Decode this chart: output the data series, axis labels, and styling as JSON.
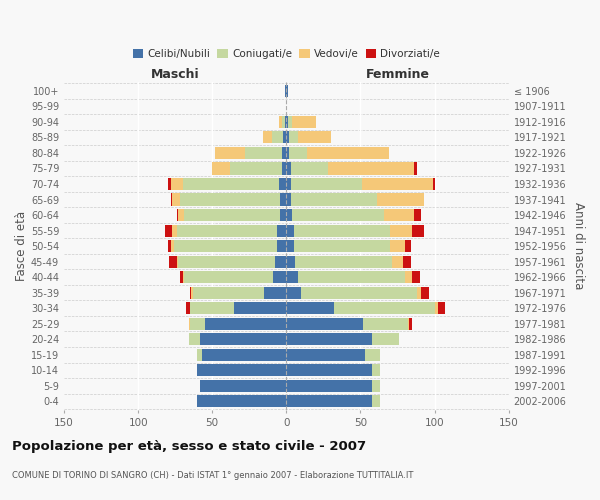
{
  "age_groups": [
    "100+",
    "95-99",
    "90-94",
    "85-89",
    "80-84",
    "75-79",
    "70-74",
    "65-69",
    "60-64",
    "55-59",
    "50-54",
    "45-49",
    "40-44",
    "35-39",
    "30-34",
    "25-29",
    "20-24",
    "15-19",
    "10-14",
    "5-9",
    "0-4"
  ],
  "birth_years": [
    "≤ 1906",
    "1907-1911",
    "1912-1916",
    "1917-1921",
    "1922-1926",
    "1927-1931",
    "1932-1936",
    "1937-1941",
    "1942-1946",
    "1947-1951",
    "1952-1956",
    "1957-1961",
    "1962-1966",
    "1967-1971",
    "1972-1976",
    "1977-1981",
    "1982-1986",
    "1987-1991",
    "1992-1996",
    "1997-2001",
    "2002-2006"
  ],
  "males_celibi": [
    1,
    0,
    1,
    2,
    3,
    3,
    5,
    4,
    4,
    6,
    6,
    8,
    9,
    15,
    35,
    55,
    58,
    57,
    60,
    58,
    60
  ],
  "males_coniugati": [
    0,
    0,
    2,
    8,
    25,
    35,
    65,
    68,
    65,
    68,
    70,
    65,
    60,
    48,
    30,
    10,
    8,
    3,
    0,
    0,
    0
  ],
  "males_vedovi": [
    0,
    0,
    2,
    6,
    20,
    12,
    8,
    5,
    4,
    3,
    2,
    1,
    1,
    1,
    0,
    1,
    0,
    0,
    0,
    0,
    0
  ],
  "males_divorziati": [
    0,
    0,
    0,
    0,
    0,
    0,
    2,
    1,
    1,
    5,
    2,
    5,
    2,
    1,
    3,
    0,
    0,
    0,
    0,
    0,
    0
  ],
  "females_nubili": [
    1,
    0,
    1,
    2,
    2,
    3,
    3,
    3,
    4,
    5,
    5,
    6,
    8,
    10,
    32,
    52,
    58,
    53,
    58,
    58,
    58
  ],
  "females_coniugate": [
    0,
    0,
    3,
    6,
    12,
    25,
    48,
    58,
    62,
    65,
    65,
    65,
    72,
    78,
    68,
    30,
    18,
    10,
    5,
    5,
    5
  ],
  "females_vedove": [
    0,
    0,
    16,
    22,
    55,
    58,
    48,
    32,
    20,
    15,
    10,
    8,
    5,
    3,
    2,
    1,
    0,
    0,
    0,
    0,
    0
  ],
  "females_divorziate": [
    0,
    0,
    0,
    0,
    0,
    2,
    1,
    0,
    5,
    8,
    4,
    5,
    5,
    5,
    5,
    2,
    0,
    0,
    0,
    0,
    0
  ],
  "color_celibi": "#4472a8",
  "color_coniugati": "#c5d8a0",
  "color_vedovi": "#f5c878",
  "color_divorziati": "#cc1111",
  "xlim": 150,
  "title": "Popolazione per età, sesso e stato civile - 2007",
  "subtitle": "COMUNE DI TORINO DI SANGRO (CH) - Dati ISTAT 1° gennaio 2007 - Elaborazione TUTTITALIA.IT",
  "label_maschi": "Maschi",
  "label_femmine": "Femmine",
  "ylabel_left": "Fasce di età",
  "ylabel_right": "Anni di nascita",
  "legend_labels": [
    "Celibi/Nubili",
    "Coniugati/e",
    "Vedovi/e",
    "Divorziati/e"
  ],
  "bg_color": "#f8f8f8"
}
